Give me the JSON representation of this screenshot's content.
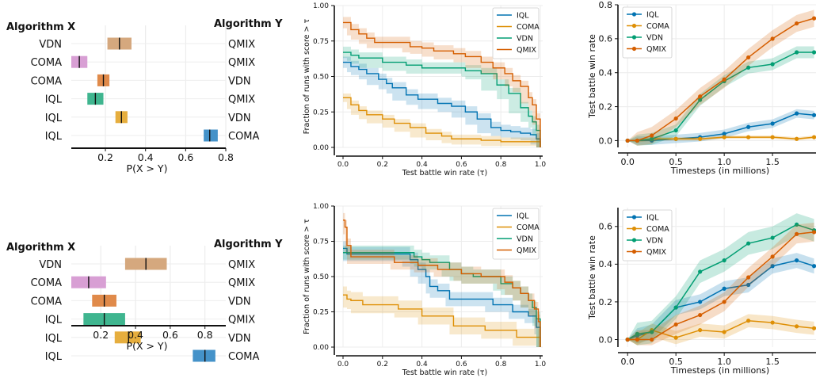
{
  "colors": {
    "IQL": "#0173b2",
    "COMA": "#de8f05",
    "VDN": "#029e73",
    "QMIX": "#d55e00",
    "bar_tan": "#d5a87e",
    "bar_pink": "#d89fd4",
    "bar_orange": "#e08a4a",
    "bar_green": "#3fb58f",
    "bar_yellow": "#e6ae3e",
    "bar_blue": "#4492c9"
  },
  "chart_data": [
    {
      "type": "bar",
      "subtype": "probability-of-improvement",
      "header_left": "Algorithm X",
      "header_right": "Algorithm Y",
      "xlabel": "P(X > Y)",
      "xlim": [
        0.03,
        0.8
      ],
      "xticks": [
        "0.2",
        "0.4",
        "0.6",
        "0.8"
      ],
      "rows": [
        {
          "x": "VDN",
          "y": "QMIX",
          "lo": 0.21,
          "hi": 0.33,
          "mean": 0.27,
          "color": "bar_tan"
        },
        {
          "x": "COMA",
          "y": "QMIX",
          "lo": 0.03,
          "hi": 0.11,
          "mean": 0.07,
          "color": "bar_pink"
        },
        {
          "x": "COMA",
          "y": "VDN",
          "lo": 0.16,
          "hi": 0.22,
          "mean": 0.19,
          "color": "bar_orange"
        },
        {
          "x": "IQL",
          "y": "QMIX",
          "lo": 0.11,
          "hi": 0.19,
          "mean": 0.15,
          "color": "bar_green"
        },
        {
          "x": "IQL",
          "y": "VDN",
          "lo": 0.25,
          "hi": 0.31,
          "mean": 0.28,
          "color": "bar_yellow"
        },
        {
          "x": "IQL",
          "y": "COMA",
          "lo": 0.69,
          "hi": 0.76,
          "mean": 0.72,
          "color": "bar_blue"
        }
      ]
    },
    {
      "type": "line",
      "subtype": "performance-profile",
      "xlabel": "Test battle win rate (τ)",
      "ylabel": "Fraction of runs with score > τ",
      "xlim": [
        0,
        1
      ],
      "ylim": [
        0,
        1
      ],
      "xticks": [
        "0.0",
        "0.2",
        "0.4",
        "0.6",
        "0.8",
        "1.0"
      ],
      "yticks": [
        "0.00",
        "0.25",
        "0.50",
        "0.75",
        "1.00"
      ],
      "legend": "top-right",
      "series": [
        {
          "name": "IQL",
          "color": "IQL",
          "band": 0.04,
          "points": [
            [
              0,
              0.6
            ],
            [
              0.02,
              0.6
            ],
            [
              0.04,
              0.57
            ],
            [
              0.08,
              0.55
            ],
            [
              0.12,
              0.52
            ],
            [
              0.18,
              0.48
            ],
            [
              0.22,
              0.45
            ],
            [
              0.25,
              0.42
            ],
            [
              0.32,
              0.37
            ],
            [
              0.38,
              0.34
            ],
            [
              0.48,
              0.31
            ],
            [
              0.55,
              0.29
            ],
            [
              0.62,
              0.25
            ],
            [
              0.68,
              0.2
            ],
            [
              0.75,
              0.14
            ],
            [
              0.8,
              0.12
            ],
            [
              0.85,
              0.11
            ],
            [
              0.9,
              0.1
            ],
            [
              0.95,
              0.09
            ],
            [
              0.98,
              0.06
            ],
            [
              1.0,
              0.0
            ]
          ]
        },
        {
          "name": "COMA",
          "color": "COMA",
          "band": 0.03,
          "points": [
            [
              0,
              0.35
            ],
            [
              0.02,
              0.35
            ],
            [
              0.04,
              0.3
            ],
            [
              0.08,
              0.26
            ],
            [
              0.12,
              0.23
            ],
            [
              0.2,
              0.2
            ],
            [
              0.26,
              0.17
            ],
            [
              0.34,
              0.14
            ],
            [
              0.42,
              0.1
            ],
            [
              0.5,
              0.08
            ],
            [
              0.55,
              0.06
            ],
            [
              0.7,
              0.05
            ],
            [
              0.8,
              0.04
            ],
            [
              0.9,
              0.04
            ],
            [
              0.98,
              0.04
            ],
            [
              1.0,
              0.0
            ]
          ]
        },
        {
          "name": "VDN",
          "color": "VDN",
          "band": 0.04,
          "points": [
            [
              0,
              0.67
            ],
            [
              0.02,
              0.67
            ],
            [
              0.04,
              0.65
            ],
            [
              0.08,
              0.63
            ],
            [
              0.2,
              0.6
            ],
            [
              0.32,
              0.58
            ],
            [
              0.4,
              0.56
            ],
            [
              0.6,
              0.56
            ],
            [
              0.62,
              0.54
            ],
            [
              0.7,
              0.52
            ],
            [
              0.78,
              0.44
            ],
            [
              0.84,
              0.38
            ],
            [
              0.9,
              0.28
            ],
            [
              0.94,
              0.22
            ],
            [
              0.96,
              0.18
            ],
            [
              0.98,
              0.12
            ],
            [
              1.0,
              0.0
            ]
          ]
        },
        {
          "name": "QMIX",
          "color": "QMIX",
          "band": 0.04,
          "points": [
            [
              0,
              0.88
            ],
            [
              0.02,
              0.88
            ],
            [
              0.04,
              0.83
            ],
            [
              0.08,
              0.8
            ],
            [
              0.12,
              0.77
            ],
            [
              0.16,
              0.74
            ],
            [
              0.3,
              0.74
            ],
            [
              0.34,
              0.71
            ],
            [
              0.4,
              0.7
            ],
            [
              0.46,
              0.68
            ],
            [
              0.56,
              0.66
            ],
            [
              0.62,
              0.64
            ],
            [
              0.7,
              0.6
            ],
            [
              0.76,
              0.56
            ],
            [
              0.82,
              0.52
            ],
            [
              0.86,
              0.47
            ],
            [
              0.9,
              0.43
            ],
            [
              0.94,
              0.35
            ],
            [
              0.96,
              0.3
            ],
            [
              0.98,
              0.2
            ],
            [
              1.0,
              0.0
            ]
          ]
        }
      ]
    },
    {
      "type": "line",
      "subtype": "sample-efficiency",
      "xlabel": "Timesteps (in millions)",
      "ylabel": "Test battle win rate",
      "xlim": [
        -0.1,
        1.95
      ],
      "ylim": [
        -0.04,
        0.8
      ],
      "xticks": [
        "0.0",
        "0.5",
        "1.0",
        "1.5"
      ],
      "yticks": [
        "0.0",
        "0.2",
        "0.4",
        "0.6",
        "0.8"
      ],
      "legend": "top-left",
      "x": [
        0,
        0.1,
        0.25,
        0.5,
        0.75,
        1.0,
        1.25,
        1.5,
        1.75,
        1.93
      ],
      "series": [
        {
          "name": "IQL",
          "color": "IQL",
          "band": 0.025,
          "values": [
            0.0,
            0.0,
            0.0,
            0.01,
            0.02,
            0.04,
            0.08,
            0.1,
            0.16,
            0.15
          ]
        },
        {
          "name": "COMA",
          "color": "COMA",
          "band": 0.01,
          "values": [
            0.0,
            0.0,
            0.01,
            0.01,
            0.01,
            0.02,
            0.02,
            0.02,
            0.01,
            0.02
          ]
        },
        {
          "name": "VDN",
          "color": "VDN",
          "band": 0.035,
          "values": [
            0.0,
            0.0,
            0.01,
            0.06,
            0.24,
            0.35,
            0.43,
            0.45,
            0.52,
            0.52
          ]
        },
        {
          "name": "QMIX",
          "color": "QMIX",
          "band": 0.05,
          "values": [
            0.0,
            0.0,
            0.03,
            0.13,
            0.26,
            0.36,
            0.49,
            0.6,
            0.69,
            0.72
          ]
        }
      ]
    },
    {
      "type": "bar",
      "subtype": "probability-of-improvement",
      "header_left": "Algorithm X",
      "header_right": "Algorithm Y",
      "xlabel": "P(X > Y)",
      "xlim": [
        0.03,
        0.92
      ],
      "xticks": [
        "0.2",
        "0.4",
        "0.6",
        "0.8"
      ],
      "rows": [
        {
          "x": "VDN",
          "y": "QMIX",
          "lo": 0.34,
          "hi": 0.58,
          "mean": 0.46,
          "color": "bar_tan"
        },
        {
          "x": "COMA",
          "y": "QMIX",
          "lo": 0.03,
          "hi": 0.23,
          "mean": 0.13,
          "color": "bar_pink"
        },
        {
          "x": "COMA",
          "y": "VDN",
          "lo": 0.15,
          "hi": 0.29,
          "mean": 0.22,
          "color": "bar_orange"
        },
        {
          "x": "IQL",
          "y": "QMIX",
          "lo": 0.1,
          "hi": 0.34,
          "mean": 0.22,
          "color": "bar_green"
        },
        {
          "x": "IQL",
          "y": "VDN",
          "lo": 0.28,
          "hi": 0.43,
          "mean": 0.36,
          "color": "bar_yellow"
        },
        {
          "x": "IQL",
          "y": "COMA",
          "lo": 0.73,
          "hi": 0.86,
          "mean": 0.8,
          "color": "bar_blue"
        }
      ]
    },
    {
      "type": "line",
      "subtype": "performance-profile",
      "xlabel": "Test battle win rate (τ)",
      "ylabel": "Fraction of runs with score > τ",
      "xlim": [
        0,
        1
      ],
      "ylim": [
        0,
        1
      ],
      "xticks": [
        "0.0",
        "0.2",
        "0.4",
        "0.6",
        "0.8",
        "1.0"
      ],
      "yticks": [
        "0.00",
        "0.25",
        "0.50",
        "0.75",
        "1.00"
      ],
      "legend": "top-right",
      "series": [
        {
          "name": "IQL",
          "color": "IQL",
          "band": 0.05,
          "points": [
            [
              0,
              0.7
            ],
            [
              0.02,
              0.66
            ],
            [
              0.3,
              0.66
            ],
            [
              0.34,
              0.62
            ],
            [
              0.38,
              0.55
            ],
            [
              0.42,
              0.5
            ],
            [
              0.44,
              0.43
            ],
            [
              0.48,
              0.4
            ],
            [
              0.52,
              0.4
            ],
            [
              0.54,
              0.34
            ],
            [
              0.72,
              0.34
            ],
            [
              0.76,
              0.3
            ],
            [
              0.84,
              0.3
            ],
            [
              0.86,
              0.25
            ],
            [
              0.92,
              0.25
            ],
            [
              0.94,
              0.22
            ],
            [
              0.97,
              0.22
            ],
            [
              0.98,
              0.14
            ],
            [
              1.0,
              0.0
            ]
          ]
        },
        {
          "name": "COMA",
          "color": "COMA",
          "band": 0.06,
          "points": [
            [
              0,
              0.37
            ],
            [
              0.02,
              0.34
            ],
            [
              0.04,
              0.33
            ],
            [
              0.1,
              0.3
            ],
            [
              0.26,
              0.3
            ],
            [
              0.28,
              0.27
            ],
            [
              0.38,
              0.27
            ],
            [
              0.4,
              0.22
            ],
            [
              0.54,
              0.22
            ],
            [
              0.56,
              0.15
            ],
            [
              0.7,
              0.15
            ],
            [
              0.72,
              0.12
            ],
            [
              0.86,
              0.12
            ],
            [
              0.88,
              0.07
            ],
            [
              0.98,
              0.07
            ],
            [
              1.0,
              0.0
            ]
          ]
        },
        {
          "name": "VDN",
          "color": "VDN",
          "band": 0.05,
          "points": [
            [
              0,
              0.67
            ],
            [
              0.02,
              0.67
            ],
            [
              0.34,
              0.67
            ],
            [
              0.36,
              0.64
            ],
            [
              0.4,
              0.62
            ],
            [
              0.44,
              0.6
            ],
            [
              0.5,
              0.6
            ],
            [
              0.54,
              0.55
            ],
            [
              0.6,
              0.52
            ],
            [
              0.66,
              0.5
            ],
            [
              0.76,
              0.5
            ],
            [
              0.8,
              0.45
            ],
            [
              0.86,
              0.42
            ],
            [
              0.9,
              0.38
            ],
            [
              0.94,
              0.33
            ],
            [
              0.96,
              0.28
            ],
            [
              0.98,
              0.2
            ],
            [
              1.0,
              0.0
            ]
          ]
        },
        {
          "name": "QMIX",
          "color": "QMIX",
          "band": 0.05,
          "points": [
            [
              0,
              0.9
            ],
            [
              0.01,
              0.85
            ],
            [
              0.02,
              0.72
            ],
            [
              0.04,
              0.64
            ],
            [
              0.24,
              0.64
            ],
            [
              0.26,
              0.6
            ],
            [
              0.36,
              0.6
            ],
            [
              0.38,
              0.58
            ],
            [
              0.46,
              0.58
            ],
            [
              0.48,
              0.55
            ],
            [
              0.56,
              0.55
            ],
            [
              0.6,
              0.52
            ],
            [
              0.7,
              0.5
            ],
            [
              0.78,
              0.5
            ],
            [
              0.82,
              0.46
            ],
            [
              0.86,
              0.42
            ],
            [
              0.9,
              0.38
            ],
            [
              0.94,
              0.33
            ],
            [
              0.97,
              0.27
            ],
            [
              0.99,
              0.18
            ],
            [
              1.0,
              0.0
            ]
          ]
        }
      ]
    },
    {
      "type": "line",
      "subtype": "sample-efficiency",
      "xlabel": "Timesteps (in millions)",
      "ylabel": "Test battle win rate",
      "xlim": [
        -0.1,
        1.95
      ],
      "ylim": [
        -0.04,
        0.7
      ],
      "xticks": [
        "0.0",
        "0.5",
        "1.0",
        "1.5"
      ],
      "yticks": [
        "0.0",
        "0.2",
        "0.4",
        "0.6"
      ],
      "legend": "top-left",
      "x": [
        0,
        0.1,
        0.25,
        0.5,
        0.75,
        1.0,
        1.25,
        1.5,
        1.75,
        1.93
      ],
      "series": [
        {
          "name": "IQL",
          "color": "IQL",
          "band": 0.04,
          "values": [
            0.0,
            0.02,
            0.04,
            0.17,
            0.2,
            0.27,
            0.29,
            0.39,
            0.42,
            0.39
          ]
        },
        {
          "name": "COMA",
          "color": "COMA",
          "band": 0.035,
          "values": [
            0.0,
            0.0,
            0.05,
            0.01,
            0.05,
            0.04,
            0.1,
            0.09,
            0.07,
            0.06
          ]
        },
        {
          "name": "VDN",
          "color": "VDN",
          "band": 0.06,
          "values": [
            0.0,
            0.03,
            0.04,
            0.17,
            0.36,
            0.42,
            0.51,
            0.54,
            0.61,
            0.58
          ]
        },
        {
          "name": "QMIX",
          "color": "QMIX",
          "band": 0.05,
          "values": [
            0.0,
            0.0,
            0.0,
            0.08,
            0.13,
            0.2,
            0.33,
            0.44,
            0.56,
            0.57
          ]
        }
      ]
    }
  ]
}
